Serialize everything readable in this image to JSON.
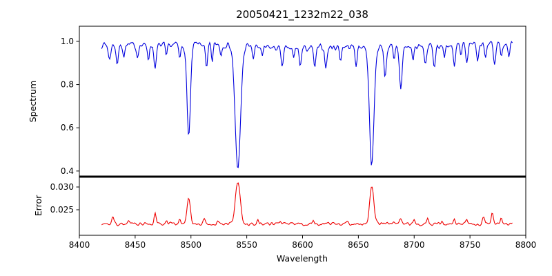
{
  "figure": {
    "background": "#ffffff"
  },
  "chart_data": {
    "type": "line",
    "title": "20050421_1232m22_038",
    "xlabel": "Wavelength",
    "xlim": [
      8400,
      8800
    ],
    "xticks": {
      "values": [
        8400,
        8450,
        8500,
        8550,
        8600,
        8650,
        8700,
        8750,
        8800
      ],
      "labels": [
        "8400",
        "8450",
        "8500",
        "8550",
        "8600",
        "8650",
        "8700",
        "8750",
        "8800"
      ]
    },
    "x_start": 8420,
    "x_end": 8788,
    "x_step": 0.8,
    "noise_seed": 7,
    "grid": false,
    "legend": "none",
    "panels": [
      {
        "name": "spectrum",
        "ylabel": "Spectrum",
        "color": "#0000dd",
        "ylim": [
          0.374,
          1.07
        ],
        "yticks": {
          "values": [
            0.4,
            0.6,
            0.8,
            1.0
          ],
          "labels": [
            "0.4",
            "0.6",
            "0.8",
            "1.0"
          ]
        },
        "continuum": 0.978,
        "noise_amp": 0.02,
        "absorption_lines": [
          {
            "center": 8498,
            "depth": 0.42,
            "sigma": 1.6
          },
          {
            "center": 8542,
            "depth": 0.58,
            "sigma": 2.4
          },
          {
            "center": 8662,
            "depth": 0.55,
            "sigma": 2.0
          },
          {
            "center": 8427,
            "depth": 0.07,
            "sigma": 1.0
          },
          {
            "center": 8434,
            "depth": 0.09,
            "sigma": 1.0
          },
          {
            "center": 8440,
            "depth": 0.05,
            "sigma": 0.8
          },
          {
            "center": 8452,
            "depth": 0.05,
            "sigma": 0.8
          },
          {
            "center": 8462,
            "depth": 0.06,
            "sigma": 0.8
          },
          {
            "center": 8468,
            "depth": 0.11,
            "sigma": 1.0
          },
          {
            "center": 8478,
            "depth": 0.06,
            "sigma": 0.8
          },
          {
            "center": 8490,
            "depth": 0.07,
            "sigma": 0.8
          },
          {
            "center": 8514,
            "depth": 0.12,
            "sigma": 1.0
          },
          {
            "center": 8519,
            "depth": 0.08,
            "sigma": 0.8
          },
          {
            "center": 8527,
            "depth": 0.05,
            "sigma": 0.8
          },
          {
            "center": 8556,
            "depth": 0.06,
            "sigma": 0.8
          },
          {
            "center": 8564,
            "depth": 0.05,
            "sigma": 0.8
          },
          {
            "center": 8582,
            "depth": 0.08,
            "sigma": 1.0
          },
          {
            "center": 8592,
            "depth": 0.05,
            "sigma": 0.8
          },
          {
            "center": 8598,
            "depth": 0.08,
            "sigma": 0.9
          },
          {
            "center": 8611,
            "depth": 0.09,
            "sigma": 1.0
          },
          {
            "center": 8621,
            "depth": 0.09,
            "sigma": 1.0
          },
          {
            "center": 8634,
            "depth": 0.06,
            "sigma": 0.8
          },
          {
            "center": 8648,
            "depth": 0.08,
            "sigma": 1.0
          },
          {
            "center": 8674,
            "depth": 0.14,
            "sigma": 1.0
          },
          {
            "center": 8682,
            "depth": 0.07,
            "sigma": 0.8
          },
          {
            "center": 8688,
            "depth": 0.19,
            "sigma": 1.2
          },
          {
            "center": 8699,
            "depth": 0.06,
            "sigma": 0.8
          },
          {
            "center": 8710,
            "depth": 0.08,
            "sigma": 1.0
          },
          {
            "center": 8718,
            "depth": 0.09,
            "sigma": 1.0
          },
          {
            "center": 8727,
            "depth": 0.06,
            "sigma": 0.8
          },
          {
            "center": 8736,
            "depth": 0.11,
            "sigma": 1.0
          },
          {
            "center": 8742,
            "depth": 0.06,
            "sigma": 0.8
          },
          {
            "center": 8747,
            "depth": 0.09,
            "sigma": 1.0
          },
          {
            "center": 8757,
            "depth": 0.08,
            "sigma": 0.9
          },
          {
            "center": 8764,
            "depth": 0.06,
            "sigma": 0.8
          },
          {
            "center": 8772,
            "depth": 0.1,
            "sigma": 1.0
          },
          {
            "center": 8778,
            "depth": 0.06,
            "sigma": 0.8
          },
          {
            "center": 8785,
            "depth": 0.05,
            "sigma": 0.8
          }
        ]
      },
      {
        "name": "error",
        "ylabel": "Error",
        "color": "#ee0000",
        "ylim": [
          0.0194,
          0.03227
        ],
        "yticks": {
          "values": [
            0.025,
            0.03
          ],
          "labels": [
            "0.025",
            "0.030"
          ]
        },
        "baseline": 0.0219,
        "noise_amp": 0.0005,
        "peaks": [
          {
            "center": 8498,
            "amp": 0.0056,
            "sigma": 1.5
          },
          {
            "center": 8542,
            "amp": 0.0092,
            "sigma": 2.2
          },
          {
            "center": 8662,
            "amp": 0.0085,
            "sigma": 1.8
          },
          {
            "center": 8430,
            "amp": 0.0018,
            "sigma": 1.0
          },
          {
            "center": 8444,
            "amp": 0.0008,
            "sigma": 0.9
          },
          {
            "center": 8468,
            "amp": 0.0022,
            "sigma": 1.0
          },
          {
            "center": 8478,
            "amp": 0.0008,
            "sigma": 0.8
          },
          {
            "center": 8490,
            "amp": 0.001,
            "sigma": 0.8
          },
          {
            "center": 8512,
            "amp": 0.0013,
            "sigma": 0.9
          },
          {
            "center": 8524,
            "amp": 0.0008,
            "sigma": 0.8
          },
          {
            "center": 8560,
            "amp": 0.0008,
            "sigma": 0.8
          },
          {
            "center": 8580,
            "amp": 0.0006,
            "sigma": 0.8
          },
          {
            "center": 8610,
            "amp": 0.0006,
            "sigma": 0.8
          },
          {
            "center": 8640,
            "amp": 0.0006,
            "sigma": 0.8
          },
          {
            "center": 8688,
            "amp": 0.0013,
            "sigma": 1.0
          },
          {
            "center": 8700,
            "amp": 0.0008,
            "sigma": 0.8
          },
          {
            "center": 8712,
            "amp": 0.001,
            "sigma": 0.9
          },
          {
            "center": 8725,
            "amp": 0.0006,
            "sigma": 0.8
          },
          {
            "center": 8736,
            "amp": 0.0009,
            "sigma": 0.8
          },
          {
            "center": 8747,
            "amp": 0.0009,
            "sigma": 0.8
          },
          {
            "center": 8762,
            "amp": 0.0016,
            "sigma": 0.9
          },
          {
            "center": 8770,
            "amp": 0.0025,
            "sigma": 0.9
          },
          {
            "center": 8778,
            "amp": 0.0013,
            "sigma": 0.8
          }
        ]
      }
    ]
  }
}
